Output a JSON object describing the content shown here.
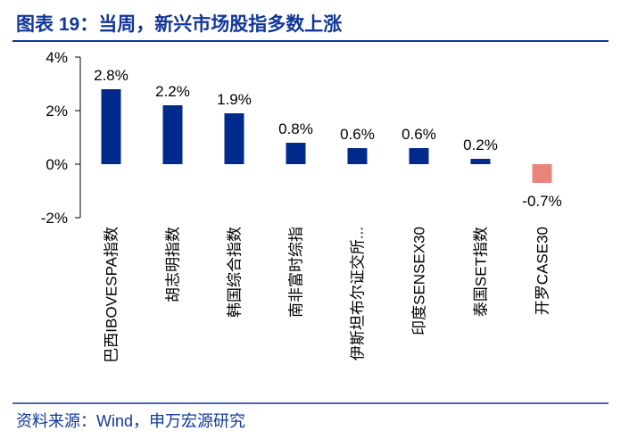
{
  "chart_data": {
    "type": "bar",
    "title": "图表 19：当周，新兴市场股指多数上涨",
    "source": "资料来源：Wind，申万宏源研究",
    "categories": [
      "巴西IBOVESPA指数",
      "胡志明指数",
      "韩国综合指数",
      "南非富时综指",
      "伊斯坦布尔证交所...",
      "印度SENSEX30",
      "泰国SET指数",
      "开罗CASE30"
    ],
    "values": [
      2.8,
      2.2,
      1.9,
      0.8,
      0.6,
      0.6,
      0.2,
      -0.7
    ],
    "value_labels": [
      "2.8%",
      "2.2%",
      "1.9%",
      "0.8%",
      "0.6%",
      "0.6%",
      "0.2%",
      "-0.7%"
    ],
    "colors": [
      "#002a8c",
      "#002a8c",
      "#002a8c",
      "#002a8c",
      "#002a8c",
      "#002a8c",
      "#002a8c",
      "#e8847a"
    ],
    "ylim": [
      -2,
      4
    ],
    "yticks": [
      {
        "value": -2,
        "label": "-2%"
      },
      {
        "value": 0,
        "label": "0%"
      },
      {
        "value": 2,
        "label": "2%"
      },
      {
        "value": 4,
        "label": "4%"
      }
    ],
    "grid": false
  }
}
